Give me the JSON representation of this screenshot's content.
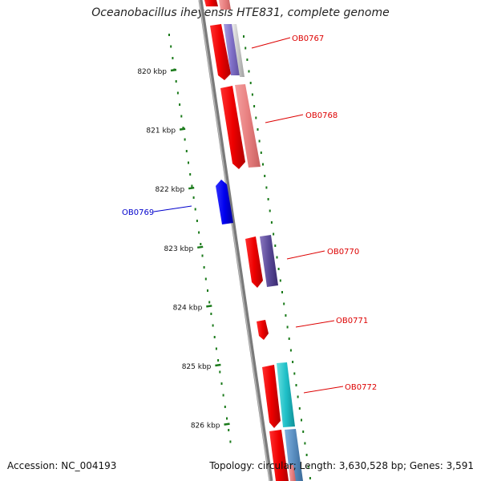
{
  "title": "Oceanobacillus iheyensis HTE831, complete genome",
  "footer": {
    "accession": "Accession: NC_004193",
    "summary": "Topology: circular; Length: 3,630,528 bp; Genes: 3,591"
  },
  "ticks": [
    "820 kbp",
    "821 kbp",
    "822 kbp",
    "823 kbp",
    "824 kbp",
    "825 kbp",
    "826 kbp"
  ],
  "genes": [
    {
      "label": "OB0767",
      "strand": "forward",
      "color": "#dd0000"
    },
    {
      "label": "OB0768",
      "strand": "forward",
      "color": "#dd0000"
    },
    {
      "label": "OB0769",
      "strand": "reverse",
      "color": "#0000cc"
    },
    {
      "label": "OB0770",
      "strand": "forward",
      "color": "#dd0000"
    },
    {
      "label": "OB0771",
      "strand": "forward",
      "color": "#dd0000"
    },
    {
      "label": "OB0772",
      "strand": "forward",
      "color": "#dd0000"
    }
  ],
  "colors": {
    "backbone": "#7a7a7a",
    "tick_dots": "#1a7a1a",
    "forward_gene": "#ee0000",
    "reverse_gene": "#0000ee",
    "cog_purple": "#6f5aa8",
    "cog_pink": "#e88080",
    "cog_cyan": "#29c4c8",
    "cog_steelblue": "#5a8ec0",
    "cog_grey": "#c8c8c8"
  }
}
